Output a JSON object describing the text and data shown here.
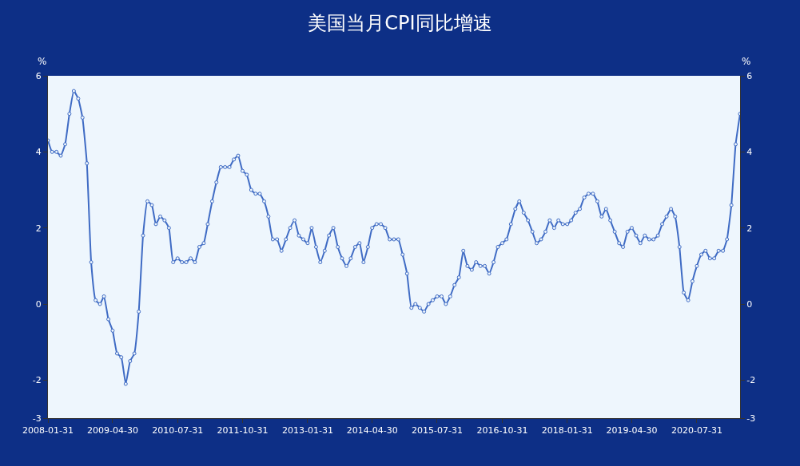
{
  "chart_data": {
    "type": "line",
    "title": "美国当月CPI同比增速",
    "ylabel": "%",
    "y2label": "%",
    "x": [
      "2008-01-31",
      "2008-02-29",
      "2008-03-31",
      "2008-04-30",
      "2008-05-31",
      "2008-06-30",
      "2008-07-31",
      "2008-08-31",
      "2008-09-30",
      "2008-10-31",
      "2008-11-30",
      "2008-12-31",
      "2009-01-31",
      "2009-02-28",
      "2009-03-31",
      "2009-04-30",
      "2009-05-31",
      "2009-06-30",
      "2009-07-31",
      "2009-08-31",
      "2009-09-30",
      "2009-10-31",
      "2009-11-30",
      "2009-12-31",
      "2010-01-31",
      "2010-02-28",
      "2010-03-31",
      "2010-04-30",
      "2010-05-31",
      "2010-06-30",
      "2010-07-31",
      "2010-08-31",
      "2010-09-30",
      "2010-10-31",
      "2010-11-30",
      "2010-12-31",
      "2011-01-31",
      "2011-02-28",
      "2011-03-31",
      "2011-04-30",
      "2011-05-31",
      "2011-06-30",
      "2011-07-31",
      "2011-08-31",
      "2011-09-30",
      "2011-10-31",
      "2011-11-30",
      "2011-12-31",
      "2012-01-31",
      "2012-02-29",
      "2012-03-31",
      "2012-04-30",
      "2012-05-31",
      "2012-06-30",
      "2012-07-31",
      "2012-08-31",
      "2012-09-30",
      "2012-10-31",
      "2012-11-30",
      "2012-12-31",
      "2013-01-31",
      "2013-02-28",
      "2013-03-31",
      "2013-04-30",
      "2013-05-31",
      "2013-06-30",
      "2013-07-31",
      "2013-08-31",
      "2013-09-30",
      "2013-10-31",
      "2013-11-30",
      "2013-12-31",
      "2014-01-31",
      "2014-02-28",
      "2014-03-31",
      "2014-04-30",
      "2014-05-31",
      "2014-06-30",
      "2014-07-31",
      "2014-08-31",
      "2014-09-30",
      "2014-10-31",
      "2014-11-30",
      "2014-12-31",
      "2015-01-31",
      "2015-02-28",
      "2015-03-31",
      "2015-04-30",
      "2015-05-31",
      "2015-06-30",
      "2015-07-31",
      "2015-08-31",
      "2015-09-30",
      "2015-10-31",
      "2015-11-30",
      "2015-12-31",
      "2016-01-31",
      "2016-02-29",
      "2016-03-31",
      "2016-04-30",
      "2016-05-31",
      "2016-06-30",
      "2016-07-31",
      "2016-08-31",
      "2016-09-30",
      "2016-10-31",
      "2016-11-30",
      "2016-12-31",
      "2017-01-31",
      "2017-02-28",
      "2017-03-31",
      "2017-04-30",
      "2017-05-31",
      "2017-06-30",
      "2017-07-31",
      "2017-08-31",
      "2017-09-30",
      "2017-10-31",
      "2017-11-30",
      "2017-12-31",
      "2018-01-31",
      "2018-02-28",
      "2018-03-31",
      "2018-04-30",
      "2018-05-31",
      "2018-06-30",
      "2018-07-31",
      "2018-08-31",
      "2018-09-30",
      "2018-10-31",
      "2018-11-30",
      "2018-12-31",
      "2019-01-31",
      "2019-02-28",
      "2019-03-31",
      "2019-04-30",
      "2019-05-31",
      "2019-06-30",
      "2019-07-31",
      "2019-08-31",
      "2019-09-30",
      "2019-10-31",
      "2019-11-30",
      "2019-12-31",
      "2020-01-31",
      "2020-02-29",
      "2020-03-31",
      "2020-04-30",
      "2020-05-31",
      "2020-06-30",
      "2020-07-31",
      "2020-08-31",
      "2020-09-30",
      "2020-10-31",
      "2020-11-30",
      "2020-12-31",
      "2021-01-31",
      "2021-02-28",
      "2021-03-31",
      "2021-04-30",
      "2021-05-31"
    ],
    "series": [
      {
        "color": "#3f6bc4",
        "values": [
          4.3,
          4.0,
          4.0,
          3.9,
          4.2,
          5.0,
          5.6,
          5.4,
          4.9,
          3.7,
          1.1,
          0.1,
          0.0,
          0.2,
          -0.4,
          -0.7,
          -1.3,
          -1.4,
          -2.1,
          -1.5,
          -1.3,
          -0.2,
          1.8,
          2.7,
          2.6,
          2.1,
          2.3,
          2.2,
          2.0,
          1.1,
          1.2,
          1.1,
          1.1,
          1.2,
          1.1,
          1.5,
          1.6,
          2.1,
          2.7,
          3.2,
          3.6,
          3.6,
          3.6,
          3.8,
          3.9,
          3.5,
          3.4,
          3.0,
          2.9,
          2.9,
          2.7,
          2.3,
          1.7,
          1.7,
          1.4,
          1.7,
          2.0,
          2.2,
          1.8,
          1.7,
          1.6,
          2.0,
          1.5,
          1.1,
          1.4,
          1.8,
          2.0,
          1.5,
          1.2,
          1.0,
          1.2,
          1.5,
          1.6,
          1.1,
          1.5,
          2.0,
          2.1,
          2.1,
          2.0,
          1.7,
          1.7,
          1.7,
          1.3,
          0.8,
          -0.1,
          0.0,
          -0.1,
          -0.2,
          0.0,
          0.1,
          0.2,
          0.2,
          0.0,
          0.2,
          0.5,
          0.7,
          1.4,
          1.0,
          0.9,
          1.1,
          1.0,
          1.0,
          0.8,
          1.1,
          1.5,
          1.6,
          1.7,
          2.1,
          2.5,
          2.7,
          2.4,
          2.2,
          1.9,
          1.6,
          1.7,
          1.9,
          2.2,
          2.0,
          2.2,
          2.1,
          2.1,
          2.2,
          2.4,
          2.5,
          2.8,
          2.9,
          2.9,
          2.7,
          2.3,
          2.5,
          2.2,
          1.9,
          1.6,
          1.5,
          1.9,
          2.0,
          1.8,
          1.6,
          1.8,
          1.7,
          1.7,
          1.8,
          2.1,
          2.3,
          2.5,
          2.3,
          1.5,
          0.3,
          0.1,
          0.6,
          1.0,
          1.3,
          1.4,
          1.2,
          1.2,
          1.4,
          1.4,
          1.7,
          2.6,
          4.2,
          5.0
        ]
      }
    ],
    "xlim": [
      "2008-01-31",
      "2021-05-31"
    ],
    "xticks": [
      {
        "value": "2008-01-31",
        "label": "2008-01-31"
      },
      {
        "value": "2009-04-30",
        "label": "2009-04-30"
      },
      {
        "value": "2010-07-31",
        "label": "2010-07-31"
      },
      {
        "value": "2011-10-31",
        "label": "2011-10-31"
      },
      {
        "value": "2013-01-31",
        "label": "2013-01-31"
      },
      {
        "value": "2014-04-30",
        "label": "2014-04-30"
      },
      {
        "value": "2015-07-31",
        "label": "2015-07-31"
      },
      {
        "value": "2016-10-31",
        "label": "2016-10-31"
      },
      {
        "value": "2018-01-31",
        "label": "2018-01-31"
      },
      {
        "value": "2019-04-30",
        "label": "2019-04-30"
      },
      {
        "value": "2020-07-31",
        "label": "2020-07-31"
      }
    ],
    "ylim": [
      -3,
      6
    ],
    "yticks": [
      -3,
      -2,
      0,
      2,
      4,
      6
    ],
    "y2lim": [
      -3,
      6
    ],
    "y2ticks": [
      -3,
      -2,
      0,
      2,
      4,
      6
    ],
    "marker": "circle",
    "line_style": "solid"
  }
}
